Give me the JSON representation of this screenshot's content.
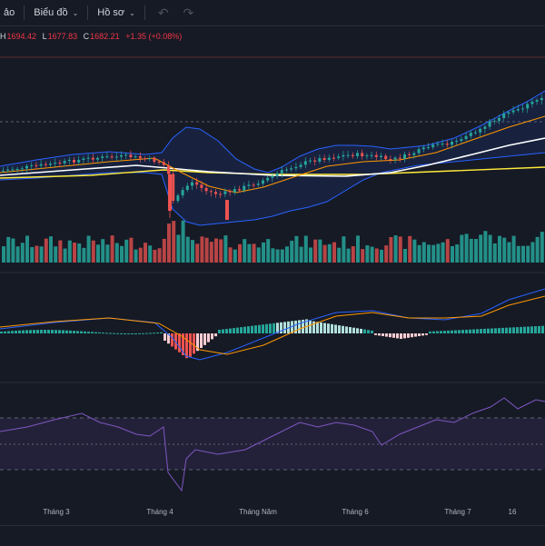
{
  "toolbar": {
    "item1_label": "ảo",
    "chart_label": "Biểu đồ",
    "profile_label": "Hồ sơ"
  },
  "ohlc": {
    "h_label": "H",
    "h_value": "1694.42",
    "l_label": "L",
    "l_value": "1677.83",
    "c_label": "C",
    "c_value": "1682.21",
    "change": "+1.35 (+0.08%)"
  },
  "xaxis": {
    "labels": [
      "Tháng 3",
      "Tháng 4",
      "Tháng Năm",
      "Tháng 6",
      "Tháng 7",
      "16"
    ]
  },
  "colors": {
    "up": "#26a69a",
    "down": "#ef5350",
    "background": "#161a25",
    "bollinger_line": "#2962ff",
    "ma_yellow": "#ffeb3b",
    "ma_white": "#ffffff",
    "ma_orange": "#ff9800",
    "rsi_line": "#7e57c2"
  },
  "icons": {
    "undo": "undo-arrow-icon",
    "redo": "redo-arrow-icon",
    "chevron": "chevron-down-icon"
  }
}
